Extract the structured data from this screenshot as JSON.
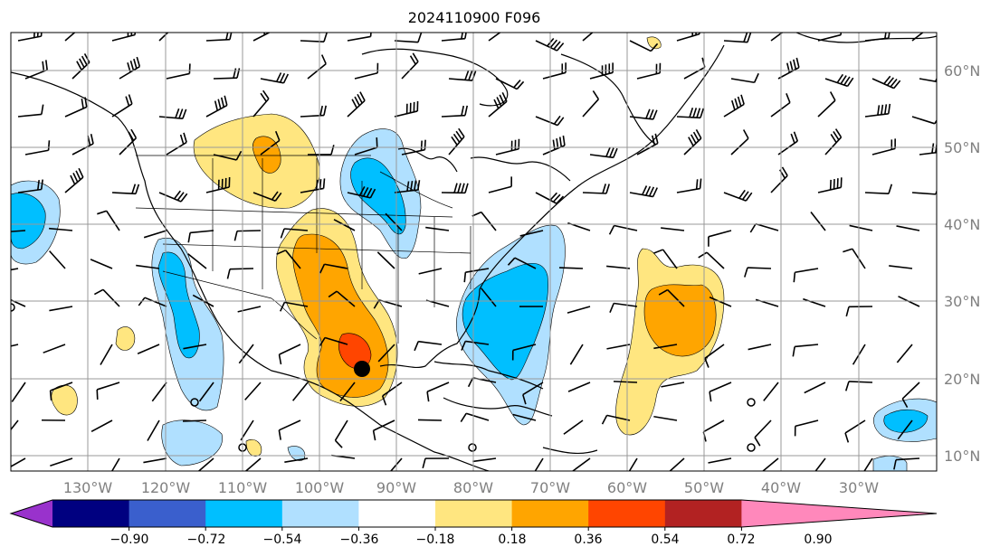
{
  "title": "2024110900 F096",
  "lon_labels": [
    "130°W",
    "120°W",
    "110°W",
    "100°W",
    "90°W",
    "80°W",
    "70°W",
    "60°W",
    "50°W",
    "40°W",
    "30°W"
  ],
  "lat_labels": [
    "60°N",
    "50°N",
    "40°N",
    "30°N",
    "20°N",
    "10°N"
  ],
  "colorbar": {
    "ticks": [
      "−0.90",
      "−0.72",
      "−0.54",
      "−0.36",
      "−0.18",
      "0.18",
      "0.36",
      "0.54",
      "0.72",
      "0.90"
    ],
    "colors": [
      "#9932cc",
      "#000080",
      "#3a5fcd",
      "#00bfff",
      "#b0e0ff",
      "#ffffff",
      "#ffe680",
      "#ffa500",
      "#ff4500",
      "#b22222",
      "#ff88bb"
    ]
  },
  "colors": {
    "pos1": "#ffe680",
    "pos2": "#ffa500",
    "pos3": "#ff4500",
    "neg1": "#b0e0ff",
    "neg2": "#00bfff",
    "grid": "#999999",
    "label": "#808080"
  },
  "marker": "black-dot-center"
}
